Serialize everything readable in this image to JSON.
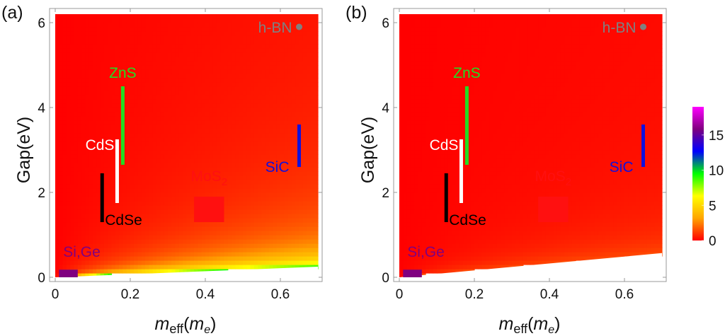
{
  "chart_data": [
    {
      "type": "heatmap",
      "panel": "(a)",
      "title": "",
      "xlabel": "m_eff(m_e)",
      "xlabel_parts": {
        "main": "m",
        "sub": "eff",
        "open": "(",
        "unit_main": "m",
        "unit_sub": "e",
        "close": ")"
      },
      "ylabel": "Gap(eV)",
      "xlim": [
        0,
        0.7
      ],
      "ylim": [
        0,
        6.2
      ],
      "xticks": [
        0,
        0.2,
        0.4,
        0.6
      ],
      "xtick_labels": [
        "0",
        "0.2",
        "0.4",
        "0.6"
      ],
      "yticks": [
        0,
        2,
        4,
        6
      ],
      "ytick_labels": [
        "0",
        "2",
        "4",
        "6"
      ],
      "lower_boundary_gap_at_xmax": 0.25,
      "color_scale_max": 18,
      "materials": [
        {
          "name": "h-BN",
          "kind": "point",
          "x": 0.65,
          "y": 5.9,
          "color": "#808080"
        },
        {
          "name": "ZnS",
          "kind": "vline",
          "x": 0.18,
          "y": [
            2.65,
            4.5
          ],
          "color": "#22dd22"
        },
        {
          "name": "CdS",
          "kind": "vline",
          "x": 0.165,
          "y": [
            1.75,
            3.25
          ],
          "color": "#ffffff"
        },
        {
          "name": "CdSe",
          "kind": "vline",
          "x": 0.125,
          "y": [
            1.3,
            2.45
          ],
          "color": "#000000"
        },
        {
          "name": "SiC",
          "kind": "vline",
          "x": 0.65,
          "y": [
            2.6,
            3.6
          ],
          "color": "#1010dd"
        },
        {
          "name": "MoS2",
          "kind": "rect",
          "x": [
            0.37,
            0.45
          ],
          "y": [
            1.3,
            1.9
          ],
          "color": "#ff1010"
        },
        {
          "name": "Si,Ge",
          "kind": "rect",
          "x": [
            0.01,
            0.06
          ],
          "y": [
            0.0,
            0.18
          ],
          "color": "#800080"
        }
      ]
    },
    {
      "type": "heatmap",
      "panel": "(b)",
      "title": "",
      "xlabel": "m_eff(m_e)",
      "xlabel_parts": {
        "main": "m",
        "sub": "eff",
        "open": "(",
        "unit_main": "m",
        "unit_sub": "e",
        "close": ")"
      },
      "ylabel": "Gap(eV)",
      "xlim": [
        0,
        0.7
      ],
      "ylim": [
        0,
        6.2
      ],
      "xticks": [
        0,
        0.2,
        0.4,
        0.6
      ],
      "xtick_labels": [
        "0",
        "0.2",
        "0.4",
        "0.6"
      ],
      "yticks": [
        0,
        2,
        4,
        6
      ],
      "ytick_labels": [
        "0",
        "2",
        "4",
        "6"
      ],
      "lower_boundary_gap_at_xmax": 0.57,
      "color_scale_max": 6.5,
      "materials": [
        {
          "name": "h-BN",
          "kind": "point",
          "x": 0.65,
          "y": 5.9,
          "color": "#808080"
        },
        {
          "name": "ZnS",
          "kind": "vline",
          "x": 0.18,
          "y": [
            2.65,
            4.5
          ],
          "color": "#22dd22"
        },
        {
          "name": "CdS",
          "kind": "vline",
          "x": 0.165,
          "y": [
            1.75,
            3.25
          ],
          "color": "#ffffff"
        },
        {
          "name": "CdSe",
          "kind": "vline",
          "x": 0.125,
          "y": [
            1.3,
            2.45
          ],
          "color": "#000000"
        },
        {
          "name": "SiC",
          "kind": "vline",
          "x": 0.65,
          "y": [
            2.6,
            3.6
          ],
          "color": "#1010dd"
        },
        {
          "name": "MoS2",
          "kind": "rect",
          "x": [
            0.37,
            0.45
          ],
          "y": [
            1.3,
            1.9
          ],
          "color": "#ff1010"
        },
        {
          "name": "Si,Ge",
          "kind": "rect",
          "x": [
            0.01,
            0.06
          ],
          "y": [
            0.0,
            0.18
          ],
          "color": "#800080"
        }
      ]
    }
  ],
  "colorbar": {
    "range": [
      0,
      19
    ],
    "ticks": [
      0,
      5,
      10,
      15
    ],
    "tick_labels": [
      "0",
      "5",
      "10",
      "15"
    ],
    "colors": [
      "#ff0000",
      "#ffa500",
      "#ffff00",
      "#00ff00",
      "#0000ff",
      "#800080",
      "#ff00ff"
    ]
  }
}
